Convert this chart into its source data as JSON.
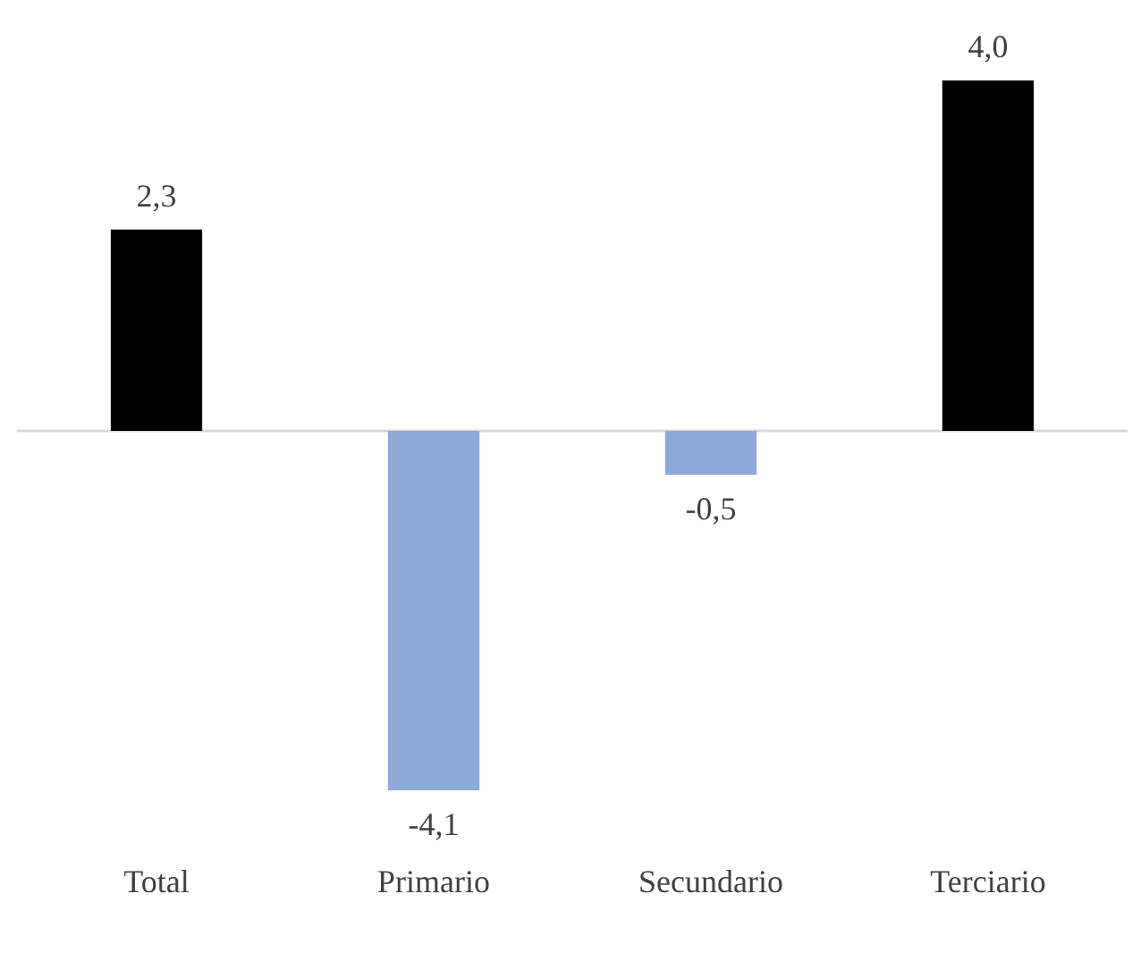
{
  "chart_data": {
    "type": "bar",
    "categories": [
      "Total",
      "Primario",
      "Secundario",
      "Terciario"
    ],
    "values": [
      2.3,
      -4.1,
      -0.5,
      4.0
    ],
    "colors": [
      "#000000",
      "#8eaadb",
      "#8eaadb",
      "#000000"
    ],
    "value_labels": [
      "2,3",
      "-4,1",
      "-0,5",
      "4,0"
    ],
    "tick_labels": "x"
  }
}
